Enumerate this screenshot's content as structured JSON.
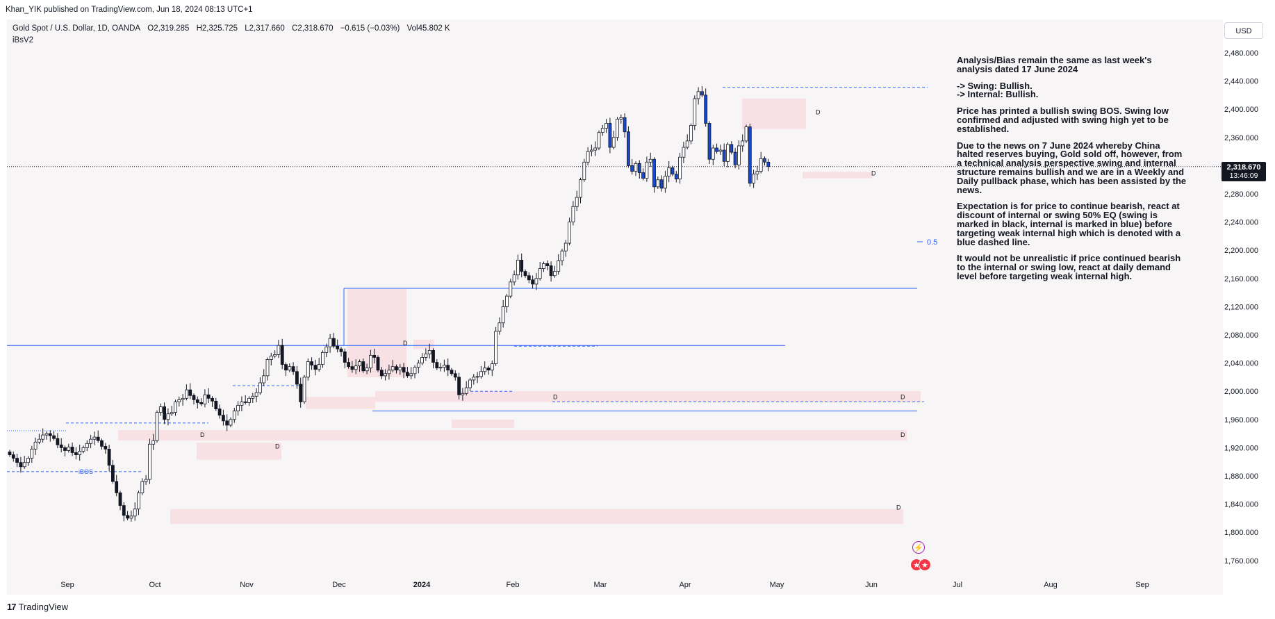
{
  "publisher_line": "Khan_YIK published on TradingView.com, Jun 18, 2024 08:13 UTC+1",
  "legend": {
    "symbol": "Gold Spot / U.S. Dollar, 1D, OANDA",
    "open": "O2,319.285",
    "high": "H2,325.725",
    "low": "L2,317.660",
    "close": "C2,318.670",
    "change": "−0.615 (−0.03%)",
    "volume": "Vol45.802 K",
    "indicator": "iBsV2"
  },
  "currency": "USD",
  "price_tag": {
    "price": "2,318.670",
    "countdown": "13:46:09"
  },
  "annotation": {
    "p1": "Analysis/Bias remain the same as last week's analysis dated 17 June 2024",
    "p2a": "-> Swing: Bullish.",
    "p2b": "-> Internal: Bullish.",
    "p3": "Price has printed a bullish swing BOS.  Swing low confirmed and adjusted with swing high yet to be established.",
    "p4": "Due to the news on 7 June 2024 whereby China halted reserves buying, Gold sold off, however, from a technical analysis perspective swing and internal structure remains bullish and we are in a Weekly and Daily pullback phase, which has been assisted by the news.",
    "p5": "Expectation is for price to continue bearish, react at discount of internal or swing 50% EQ (swing is marked in black, internal is marked in blue) before targeting weak internal high which is denoted with a blue dashed line.",
    "p6": "It would not be unrealistic if price continued bearish to the internal or swing low, react at daily demand level before targeting weak internal high."
  },
  "brand": "TradingView",
  "chart_data": {
    "type": "candlestick",
    "title": "Gold Spot / U.S. Dollar, 1D, OANDA",
    "ylim": [
      1735,
      2500
    ],
    "y_ticks": [
      "2,480.000",
      "2,440.000",
      "2,400.000",
      "2,360.000",
      "2,320.000",
      "2,280.000",
      "2,240.000",
      "2,200.000",
      "2,160.000",
      "2,120.000",
      "2,080.000",
      "2,040.000",
      "2,000.000",
      "1,960.000",
      "1,920.000",
      "1,880.000",
      "1,840.000",
      "1,800.000",
      "1,760.000"
    ],
    "y_tick_values": [
      2480,
      2440,
      2400,
      2360,
      2320,
      2280,
      2240,
      2200,
      2160,
      2120,
      2080,
      2040,
      2000,
      1960,
      1920,
      1880,
      1840,
      1800,
      1760
    ],
    "x_labels": [
      "Sep",
      "Oct",
      "Nov",
      "Dec",
      "2024",
      "Feb",
      "Mar",
      "Apr",
      "May",
      "Jun",
      "Jul",
      "Aug",
      "Sep"
    ],
    "last_price": 2318.67,
    "annotations": {
      "ibos_label": "iBOS",
      "eq_label": "0.5",
      "demand_marker": "D"
    },
    "closes": [
      1910,
      1905,
      1899,
      1893,
      1899,
      1905,
      1918,
      1928,
      1932,
      1938,
      1940,
      1937,
      1933,
      1924,
      1920,
      1916,
      1921,
      1913,
      1910,
      1915,
      1920,
      1926,
      1932,
      1935,
      1930,
      1922,
      1918,
      1895,
      1872,
      1856,
      1838,
      1824,
      1820,
      1823,
      1833,
      1856,
      1872,
      1875,
      1925,
      1930,
      1970,
      1978,
      1960,
      1968,
      1970,
      1985,
      1988,
      1990,
      2002,
      1994,
      1988,
      1984,
      1982,
      1995,
      1990,
      1986,
      1975,
      1966,
      1958,
      1952,
      1960,
      1972,
      1980,
      1985,
      1984,
      1990,
      1993,
      1998,
      2012,
      2022,
      2045,
      2050,
      2052,
      2065,
      2038,
      2030,
      2035,
      2028,
      2010,
      1985,
      2020,
      2042,
      2037,
      2031,
      2038,
      2055,
      2063,
      2075,
      2064,
      2060,
      2056,
      2041,
      2035,
      2031,
      2036,
      2042,
      2029,
      2033,
      2051,
      2048,
      2030,
      2022,
      2025,
      2030,
      2035,
      2030,
      2034,
      2027,
      2022,
      2025,
      2034,
      2040,
      2048,
      2053,
      2058,
      2041,
      2033,
      2034,
      2037,
      2030,
      2025,
      2020,
      1995,
      1997,
      2005,
      2016,
      2020,
      2021,
      2028,
      2033,
      2030,
      2039,
      2085,
      2097,
      2120,
      2135,
      2155,
      2165,
      2186,
      2170,
      2164,
      2158,
      2152,
      2160,
      2174,
      2181,
      2178,
      2164,
      2170,
      2185,
      2199,
      2210,
      2240,
      2262,
      2275,
      2300,
      2325,
      2340,
      2342,
      2345,
      2367,
      2373,
      2380,
      2346,
      2360,
      2386,
      2388,
      2368,
      2320,
      2312,
      2323,
      2310,
      2302,
      2325,
      2329,
      2290,
      2300,
      2288,
      2305,
      2317,
      2308,
      2301,
      2332,
      2346,
      2355,
      2377,
      2415,
      2425,
      2420,
      2380,
      2329,
      2345,
      2340,
      2342,
      2326,
      2350,
      2339,
      2321,
      2348,
      2355,
      2375,
      2295,
      2308,
      2312,
      2330,
      2325,
      2318.67
    ]
  }
}
